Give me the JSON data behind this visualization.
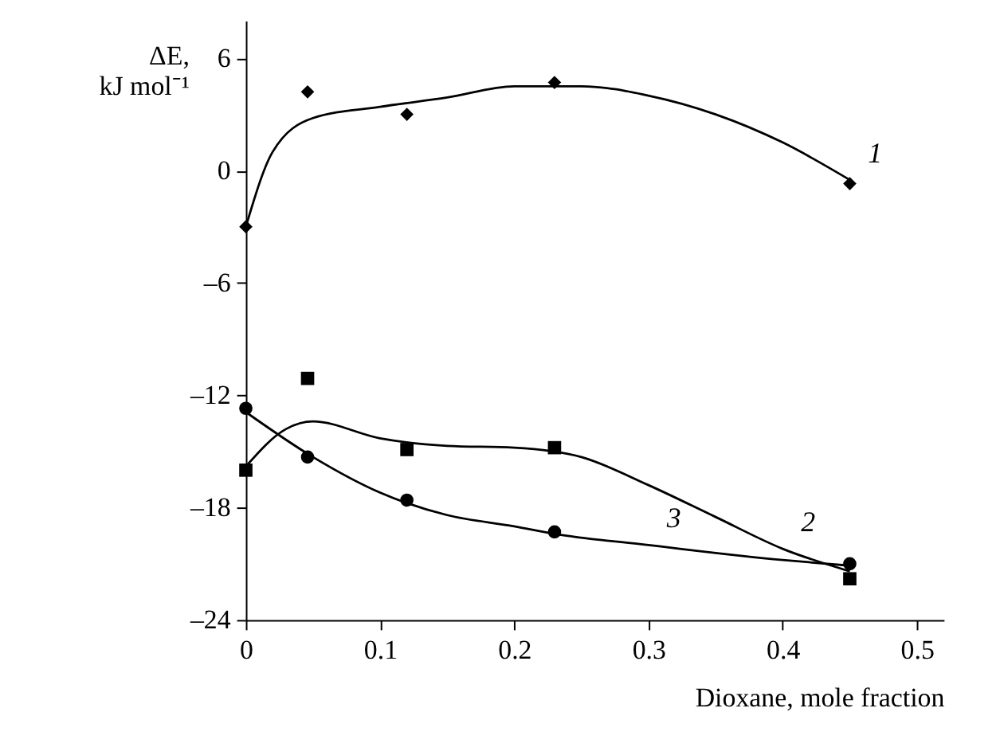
{
  "chart_data": {
    "type": "scatter",
    "xlabel": "Dioxane, mole fraction",
    "ylabel": "ΔE, kJ mol⁻¹",
    "xlim": [
      0,
      0.52
    ],
    "ylim": [
      -24,
      8
    ],
    "xticks": [
      0,
      0.1,
      0.2,
      0.3,
      0.4,
      0.5
    ],
    "yticks": [
      {
        "value": -24,
        "label": "–24"
      },
      {
        "value": -18,
        "label": "–18"
      },
      {
        "value": -12,
        "label": "–12"
      },
      {
        "value": -6,
        "label": "–6"
      },
      0,
      6
    ],
    "grid": false,
    "series": [
      {
        "marker": "diamond",
        "color": "#000000",
        "x": [
          0,
          0.046,
          0.12,
          0.23,
          0.45
        ],
        "values": [
          -3.0,
          4.2,
          3.0,
          4.7,
          -0.7
        ]
      },
      {
        "marker": "square",
        "color": "#000000",
        "x": [
          0,
          0.046,
          0.12,
          0.23,
          0.45
        ],
        "values": [
          -16.0,
          -11.1,
          -14.9,
          -14.8,
          -21.8
        ]
      },
      {
        "marker": "circle",
        "color": "#000000",
        "x": [
          0,
          0.046,
          0.12,
          0.23,
          0.45
        ],
        "values": [
          -12.7,
          -15.3,
          -17.6,
          -19.3,
          -21.0
        ]
      },
      {
        "type": "line",
        "marker": "none",
        "line_style": "solid",
        "color": "#000000",
        "x": [
          0,
          0.02,
          0.05,
          0.1,
          0.15,
          0.2,
          0.25,
          0.3,
          0.35,
          0.4,
          0.45
        ],
        "values": [
          -3.0,
          1.0,
          2.8,
          3.4,
          3.9,
          4.5,
          4.5,
          4.0,
          3.0,
          1.5,
          -0.5
        ]
      },
      {
        "type": "line",
        "marker": "none",
        "line_style": "solid",
        "color": "#000000",
        "x": [
          0,
          0.03,
          0.05,
          0.1,
          0.15,
          0.2,
          0.25,
          0.3,
          0.35,
          0.4,
          0.45
        ],
        "values": [
          -15.8,
          -13.8,
          -13.4,
          -14.3,
          -14.7,
          -14.8,
          -15.3,
          -16.8,
          -18.5,
          -20.2,
          -21.4
        ]
      },
      {
        "type": "line",
        "marker": "none",
        "line_style": "solid",
        "color": "#000000",
        "x": [
          0,
          0.05,
          0.1,
          0.15,
          0.2,
          0.23,
          0.3,
          0.4,
          0.45
        ],
        "values": [
          -12.9,
          -15.3,
          -17.2,
          -18.4,
          -19.0,
          -19.4,
          -20.0,
          -20.8,
          -21.1
        ]
      }
    ],
    "annotations": [
      {
        "text": "1",
        "x": 0.45,
        "y": -0.5
      },
      {
        "text": "2",
        "x": 0.4,
        "y": -20.2
      },
      {
        "text": "3",
        "x": 0.3,
        "y": -20.0
      }
    ]
  }
}
